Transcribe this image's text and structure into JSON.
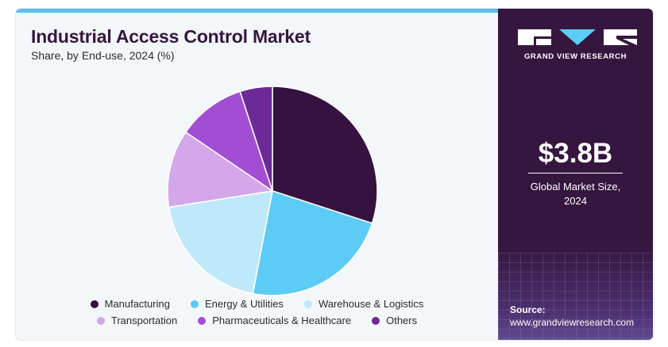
{
  "header": {
    "title": "Industrial Access Control Market",
    "subtitle": "Share, by End-use, 2024 (%)"
  },
  "chart_data": {
    "type": "pie",
    "title": "Industrial Access Control Market",
    "subtitle": "Share, by End-use, 2024 (%)",
    "categories": [
      "Manufacturing",
      "Energy & Utilities",
      "Warehouse & Logistics",
      "Transportation",
      "Pharmaceuticals & Healthcare",
      "Others"
    ],
    "values": [
      30,
      23,
      19.5,
      12,
      10.5,
      5
    ],
    "colors": [
      "#35123f",
      "#5ccbf5",
      "#bfe9fa",
      "#d4a6ea",
      "#a24ed4",
      "#6b2a96"
    ],
    "start_angle_deg": 0,
    "direction": "clockwise",
    "legend_position": "bottom"
  },
  "legend": {
    "rows": [
      [
        "Manufacturing",
        "Energy & Utilities",
        "Warehouse & Logistics"
      ],
      [
        "Transportation",
        "Pharmaceuticals & Healthcare",
        "Others"
      ]
    ]
  },
  "sidebar": {
    "brand": "GRAND VIEW RESEARCH",
    "market_size": "$3.8B",
    "market_caption_line1": "Global Market Size,",
    "market_caption_line2": "2024",
    "source_label": "Source:",
    "source_url": "www.grandviewresearch.com"
  },
  "colors": {
    "accent_stripe": "#55c3ef",
    "panel_dark": "#35163e",
    "title": "#35163e"
  }
}
